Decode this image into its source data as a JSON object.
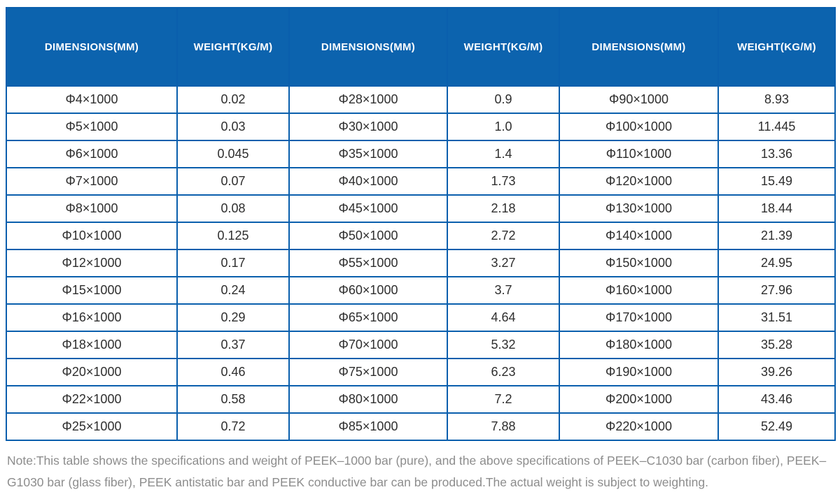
{
  "table": {
    "header": [
      "DIMENSIONS(MM)",
      "WEIGHT(KG/M)",
      "DIMENSIONS(MM)",
      "WEIGHT(KG/M)",
      "DIMENSIONS(MM)",
      "WEIGHT(KG/M)"
    ],
    "rows": [
      [
        "Φ4×1000",
        "0.02",
        "Φ28×1000",
        "0.9",
        "Φ90×1000",
        "8.93"
      ],
      [
        "Φ5×1000",
        "0.03",
        "Φ30×1000",
        "1.0",
        "Φ100×1000",
        "11.445"
      ],
      [
        "Φ6×1000",
        "0.045",
        "Φ35×1000",
        "1.4",
        "Φ110×1000",
        "13.36"
      ],
      [
        "Φ7×1000",
        "0.07",
        "Φ40×1000",
        "1.73",
        "Φ120×1000",
        "15.49"
      ],
      [
        "Φ8×1000",
        "0.08",
        "Φ45×1000",
        "2.18",
        "Φ130×1000",
        "18.44"
      ],
      [
        "Φ10×1000",
        "0.125",
        "Φ50×1000",
        "2.72",
        "Φ140×1000",
        "21.39"
      ],
      [
        "Φ12×1000",
        "0.17",
        "Φ55×1000",
        "3.27",
        "Φ150×1000",
        "24.95"
      ],
      [
        "Φ15×1000",
        "0.24",
        "Φ60×1000",
        "3.7",
        "Φ160×1000",
        "27.96"
      ],
      [
        "Φ16×1000",
        "0.29",
        "Φ65×1000",
        "4.64",
        "Φ170×1000",
        "31.51"
      ],
      [
        "Φ18×1000",
        "0.37",
        "Φ70×1000",
        "5.32",
        "Φ180×1000",
        "35.28"
      ],
      [
        "Φ20×1000",
        "0.46",
        "Φ75×1000",
        "6.23",
        "Φ190×1000",
        "39.26"
      ],
      [
        "Φ22×1000",
        "0.58",
        "Φ80×1000",
        "7.2",
        "Φ200×1000",
        "43.46"
      ],
      [
        "Φ25×1000",
        "0.72",
        "Φ85×1000",
        "7.88",
        "Φ220×1000",
        "52.49"
      ]
    ]
  },
  "note": "Note:This table shows the specifications and weight of PEEK–1000 bar (pure), and the above specifications of PEEK–C1030 bar (carbon fiber), PEEK–G1030 bar (glass fiber), PEEK antistatic bar and PEEK conductive bar can be produced.The actual weight is subject to weighting.",
  "colors": {
    "header_bg": "#0c63ae",
    "grid_border": "#0a5fad",
    "cell_text": "#2e2e2e",
    "note_text": "#8d8d8d"
  }
}
